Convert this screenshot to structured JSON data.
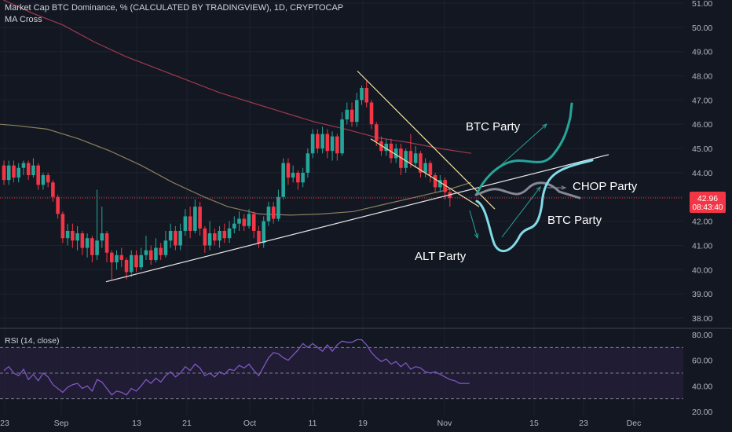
{
  "header": {
    "title": "Market Cap BTC Dominance, % (CALCULATED BY TRADINGVIEW), 1D, CRYPTOCAP",
    "indicator": "MA Cross"
  },
  "price_tag": {
    "value": "42.96",
    "countdown": "08:43:40",
    "color": "#f23645"
  },
  "colors": {
    "background": "#131722",
    "grid": "#1e222d",
    "up": "#26a69a",
    "down": "#f23645",
    "ma_fast": "#8a7f5f",
    "ma_slow": "#a0394e",
    "rsi_line": "#7e57c2",
    "rsi_band": "#2a2141",
    "trendline": "#e8e8e8",
    "wedge": "#f0e0a0",
    "green_path": "#26a69a",
    "cyan_path": "#7fdce8",
    "gray_path": "#868993"
  },
  "annotations": {
    "btc_party_top": "BTC Party",
    "chop_party": "CHOP Party",
    "btc_party_right": "BTC Party",
    "alt_party": "ALT Party"
  },
  "chart_data": [
    {
      "type": "candlestick",
      "title": "Market Cap BTC Dominance, % (CALCULATED BY TRADINGVIEW), 1D, CRYPTOCAP",
      "y_ticks": [
        "51.00",
        "50.00",
        "49.00",
        "48.00",
        "47.00",
        "46.00",
        "45.00",
        "44.00",
        "43.00",
        "42.00",
        "41.00",
        "40.00",
        "39.00",
        "38.00"
      ],
      "ylim": [
        37.3,
        51.2
      ],
      "x_ticks": [
        "23",
        "Sep",
        "13",
        "21",
        "Oct",
        "11",
        "19",
        "Nov",
        "15",
        "23",
        "Dec"
      ],
      "last_value": 42.96,
      "series": [
        {
          "name": "MA Cross",
          "kind": "ma_fast",
          "points": [
            [
              0,
              46.0
            ],
            [
              20,
              45.95
            ],
            [
              60,
              45.8
            ],
            [
              100,
              45.4
            ],
            [
              140,
              44.9
            ],
            [
              180,
              44.3
            ],
            [
              220,
              43.6
            ],
            [
              260,
              43.0
            ],
            [
              290,
              42.6
            ],
            [
              330,
              42.3
            ],
            [
              370,
              42.25
            ],
            [
              410,
              42.3
            ],
            [
              450,
              42.4
            ],
            [
              490,
              42.7
            ],
            [
              530,
              43.0
            ],
            [
              570,
              43.3
            ],
            [
              600,
              43.6
            ]
          ]
        },
        {
          "name": "MA Cross",
          "kind": "ma_slow",
          "points": [
            [
              0,
              51.2
            ],
            [
              40,
              50.6
            ],
            [
              80,
              50.1
            ],
            [
              120,
              49.4
            ],
            [
              160,
              48.8
            ],
            [
              200,
              48.3
            ],
            [
              240,
              47.8
            ],
            [
              280,
              47.3
            ],
            [
              320,
              46.9
            ],
            [
              360,
              46.5
            ],
            [
              400,
              46.1
            ],
            [
              440,
              45.8
            ],
            [
              480,
              45.45
            ],
            [
              520,
              45.25
            ],
            [
              560,
              45.0
            ],
            [
              600,
              44.8
            ]
          ]
        }
      ],
      "candles": [
        {
          "o": 44.3,
          "c": 43.7,
          "h": 44.5,
          "l": 43.5
        },
        {
          "o": 43.7,
          "c": 44.3,
          "h": 44.5,
          "l": 43.5
        },
        {
          "o": 44.3,
          "c": 43.8,
          "h": 44.5,
          "l": 43.6
        },
        {
          "o": 43.8,
          "c": 44.2,
          "h": 44.4,
          "l": 43.6
        },
        {
          "o": 44.2,
          "c": 44.4,
          "h": 44.5,
          "l": 43.9
        },
        {
          "o": 44.4,
          "c": 43.9,
          "h": 44.5,
          "l": 43.7
        },
        {
          "o": 43.9,
          "c": 44.3,
          "h": 44.6,
          "l": 43.8
        },
        {
          "o": 44.3,
          "c": 43.5,
          "h": 44.4,
          "l": 43.3
        },
        {
          "o": 43.5,
          "c": 43.9,
          "h": 44.0,
          "l": 43.3
        },
        {
          "o": 43.9,
          "c": 43.6,
          "h": 44.0,
          "l": 43.4
        },
        {
          "o": 43.6,
          "c": 43.0,
          "h": 43.7,
          "l": 42.8
        },
        {
          "o": 43.0,
          "c": 42.3,
          "h": 43.1,
          "l": 42.1
        },
        {
          "o": 42.3,
          "c": 41.3,
          "h": 42.4,
          "l": 41.1
        },
        {
          "o": 41.3,
          "c": 41.6,
          "h": 41.9,
          "l": 41.0
        },
        {
          "o": 41.6,
          "c": 41.2,
          "h": 41.9,
          "l": 40.9
        },
        {
          "o": 41.2,
          "c": 41.5,
          "h": 41.8,
          "l": 40.8
        },
        {
          "o": 41.5,
          "c": 40.9,
          "h": 41.6,
          "l": 40.6
        },
        {
          "o": 40.9,
          "c": 41.3,
          "h": 41.5,
          "l": 40.5
        },
        {
          "o": 41.3,
          "c": 40.6,
          "h": 41.4,
          "l": 40.3
        },
        {
          "o": 40.6,
          "c": 41.2,
          "h": 43.3,
          "l": 40.4
        },
        {
          "o": 41.2,
          "c": 41.5,
          "h": 42.6,
          "l": 40.9
        },
        {
          "o": 41.5,
          "c": 40.7,
          "h": 41.6,
          "l": 40.3
        },
        {
          "o": 40.7,
          "c": 40.3,
          "h": 40.8,
          "l": 39.6
        },
        {
          "o": 40.3,
          "c": 40.6,
          "h": 40.8,
          "l": 40.0
        },
        {
          "o": 40.6,
          "c": 40.4,
          "h": 40.9,
          "l": 40.1
        },
        {
          "o": 40.4,
          "c": 39.9,
          "h": 40.5,
          "l": 39.6
        },
        {
          "o": 39.9,
          "c": 40.6,
          "h": 40.8,
          "l": 39.7
        },
        {
          "o": 40.6,
          "c": 40.1,
          "h": 40.8,
          "l": 39.9
        },
        {
          "o": 40.1,
          "c": 40.6,
          "h": 40.9,
          "l": 40.0
        },
        {
          "o": 40.6,
          "c": 40.8,
          "h": 41.4,
          "l": 40.4
        },
        {
          "o": 40.8,
          "c": 40.4,
          "h": 41.0,
          "l": 40.2
        },
        {
          "o": 40.4,
          "c": 40.9,
          "h": 41.3,
          "l": 40.3
        },
        {
          "o": 40.9,
          "c": 40.6,
          "h": 41.1,
          "l": 40.4
        },
        {
          "o": 40.6,
          "c": 41.2,
          "h": 41.6,
          "l": 40.5
        },
        {
          "o": 41.2,
          "c": 41.6,
          "h": 41.9,
          "l": 40.9
        },
        {
          "o": 41.6,
          "c": 41.0,
          "h": 41.8,
          "l": 40.8
        },
        {
          "o": 41.0,
          "c": 41.6,
          "h": 41.9,
          "l": 40.8
        },
        {
          "o": 41.6,
          "c": 42.2,
          "h": 42.5,
          "l": 41.4
        },
        {
          "o": 42.2,
          "c": 41.6,
          "h": 42.6,
          "l": 41.3
        },
        {
          "o": 41.6,
          "c": 42.6,
          "h": 42.9,
          "l": 41.5
        },
        {
          "o": 42.6,
          "c": 41.7,
          "h": 42.8,
          "l": 41.4
        },
        {
          "o": 41.7,
          "c": 41.0,
          "h": 41.8,
          "l": 40.7
        },
        {
          "o": 41.0,
          "c": 41.5,
          "h": 42.0,
          "l": 40.8
        },
        {
          "o": 41.5,
          "c": 41.2,
          "h": 41.7,
          "l": 41.0
        },
        {
          "o": 41.2,
          "c": 41.6,
          "h": 41.8,
          "l": 40.9
        },
        {
          "o": 41.6,
          "c": 41.3,
          "h": 41.9,
          "l": 41.1
        },
        {
          "o": 41.3,
          "c": 41.7,
          "h": 42.0,
          "l": 41.1
        },
        {
          "o": 41.7,
          "c": 41.9,
          "h": 42.2,
          "l": 41.5
        },
        {
          "o": 41.9,
          "c": 42.1,
          "h": 42.4,
          "l": 41.6
        },
        {
          "o": 42.1,
          "c": 41.8,
          "h": 42.3,
          "l": 41.6
        },
        {
          "o": 41.8,
          "c": 42.3,
          "h": 42.5,
          "l": 41.7
        },
        {
          "o": 42.3,
          "c": 41.6,
          "h": 42.4,
          "l": 41.3
        },
        {
          "o": 41.6,
          "c": 41.1,
          "h": 41.8,
          "l": 40.9
        },
        {
          "o": 41.1,
          "c": 42.0,
          "h": 42.2,
          "l": 40.9
        },
        {
          "o": 42.0,
          "c": 42.6,
          "h": 42.8,
          "l": 41.8
        },
        {
          "o": 42.6,
          "c": 42.1,
          "h": 42.8,
          "l": 41.9
        },
        {
          "o": 42.1,
          "c": 43.0,
          "h": 43.3,
          "l": 42.0
        },
        {
          "o": 43.0,
          "c": 44.4,
          "h": 44.6,
          "l": 42.9
        },
        {
          "o": 44.4,
          "c": 43.8,
          "h": 44.6,
          "l": 43.5
        },
        {
          "o": 43.8,
          "c": 44.0,
          "h": 44.3,
          "l": 43.6
        },
        {
          "o": 44.0,
          "c": 43.6,
          "h": 44.1,
          "l": 43.3
        },
        {
          "o": 43.6,
          "c": 44.0,
          "h": 44.2,
          "l": 43.4
        },
        {
          "o": 44.0,
          "c": 44.8,
          "h": 45.0,
          "l": 43.8
        },
        {
          "o": 44.8,
          "c": 45.6,
          "h": 45.8,
          "l": 44.6
        },
        {
          "o": 45.6,
          "c": 45.0,
          "h": 45.8,
          "l": 44.8
        },
        {
          "o": 45.0,
          "c": 45.6,
          "h": 45.9,
          "l": 44.8
        },
        {
          "o": 45.6,
          "c": 44.9,
          "h": 45.8,
          "l": 44.6
        },
        {
          "o": 44.9,
          "c": 45.5,
          "h": 45.7,
          "l": 44.5
        },
        {
          "o": 45.5,
          "c": 44.8,
          "h": 45.6,
          "l": 44.5
        },
        {
          "o": 44.8,
          "c": 46.2,
          "h": 46.5,
          "l": 44.7
        },
        {
          "o": 46.2,
          "c": 46.6,
          "h": 46.9,
          "l": 46.0
        },
        {
          "o": 46.6,
          "c": 46.1,
          "h": 46.9,
          "l": 45.9
        },
        {
          "o": 46.1,
          "c": 47.0,
          "h": 47.3,
          "l": 45.9
        },
        {
          "o": 47.0,
          "c": 47.5,
          "h": 47.6,
          "l": 46.8
        },
        {
          "o": 47.5,
          "c": 46.9,
          "h": 47.8,
          "l": 46.7
        },
        {
          "o": 46.9,
          "c": 46.0,
          "h": 47.0,
          "l": 45.8
        },
        {
          "o": 46.0,
          "c": 45.3,
          "h": 46.1,
          "l": 45.1
        },
        {
          "o": 45.3,
          "c": 44.9,
          "h": 45.5,
          "l": 44.7
        },
        {
          "o": 44.9,
          "c": 45.2,
          "h": 45.4,
          "l": 44.7
        },
        {
          "o": 45.2,
          "c": 44.6,
          "h": 45.4,
          "l": 44.4
        },
        {
          "o": 44.6,
          "c": 45.0,
          "h": 45.2,
          "l": 44.4
        },
        {
          "o": 45.0,
          "c": 44.2,
          "h": 45.2,
          "l": 43.9
        },
        {
          "o": 44.2,
          "c": 44.9,
          "h": 45.0,
          "l": 44.0
        },
        {
          "o": 44.9,
          "c": 44.4,
          "h": 45.6,
          "l": 44.2
        },
        {
          "o": 44.4,
          "c": 44.8,
          "h": 45.1,
          "l": 44.2
        },
        {
          "o": 44.8,
          "c": 44.0,
          "h": 44.9,
          "l": 43.8
        },
        {
          "o": 44.0,
          "c": 44.4,
          "h": 44.6,
          "l": 43.8
        },
        {
          "o": 44.4,
          "c": 43.9,
          "h": 44.5,
          "l": 43.6
        },
        {
          "o": 43.9,
          "c": 43.4,
          "h": 44.0,
          "l": 43.2
        },
        {
          "o": 43.4,
          "c": 43.7,
          "h": 43.9,
          "l": 43.2
        },
        {
          "o": 43.7,
          "c": 43.2,
          "h": 43.8,
          "l": 42.9
        },
        {
          "o": 43.2,
          "c": 42.96,
          "h": 43.3,
          "l": 42.6
        }
      ],
      "trendlines": [
        {
          "name": "support",
          "from": [
            135,
            39.5
          ],
          "to": [
            775,
            44.75
          ]
        },
        {
          "name": "wedge-top",
          "from": [
            455,
            48.2
          ],
          "to": [
            630,
            42.5
          ]
        },
        {
          "name": "wedge-bottom",
          "from": [
            472,
            45.4
          ],
          "to": [
            610,
            42.6
          ]
        }
      ]
    },
    {
      "type": "line",
      "title": "RSI (14, close)",
      "y_ticks": [
        "80.00",
        "60.00",
        "40.00",
        "20.00"
      ],
      "ylim": [
        20,
        80
      ],
      "bands": [
        30,
        50,
        70
      ],
      "series": [
        {
          "name": "RSI (14, close)",
          "values": [
            52,
            55,
            50,
            48,
            53,
            45,
            49,
            44,
            50,
            47,
            41,
            38,
            35,
            39,
            41,
            42,
            38,
            40,
            36,
            45,
            43,
            38,
            33,
            36,
            35,
            33,
            38,
            36,
            40,
            45,
            42,
            46,
            43,
            48,
            51,
            47,
            50,
            55,
            52,
            57,
            54,
            48,
            50,
            47,
            51,
            49,
            53,
            52,
            56,
            54,
            57,
            52,
            48,
            55,
            62,
            66,
            65,
            62,
            60,
            64,
            68,
            73,
            70,
            73,
            70,
            67,
            72,
            67,
            72,
            75,
            74,
            74,
            76,
            76,
            72,
            66,
            62,
            59,
            61,
            57,
            59,
            55,
            58,
            53,
            55,
            54,
            51,
            50,
            51,
            49,
            47,
            45,
            44,
            42,
            42,
            42
          ]
        }
      ]
    }
  ]
}
